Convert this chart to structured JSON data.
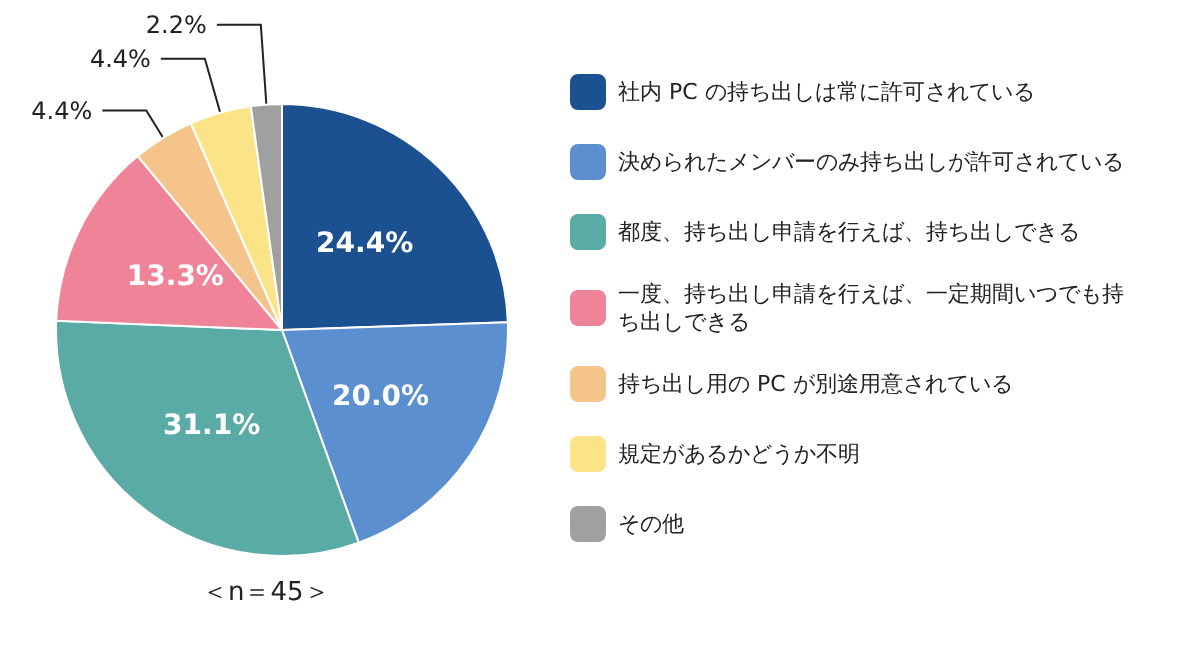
{
  "chart_data": {
    "type": "pie",
    "categories": [
      "社内 PC の持ち出しは常に許可されている",
      "決められたメンバーのみ持ち出しが許可されている",
      "都度、持ち出し申請を行えば、持ち出しできる",
      "一度、持ち出し申請を行えば、一定期間いつでも持ち出しできる",
      "持ち出し用の PC が別途用意されている",
      "規定があるかどうか不明",
      "その他"
    ],
    "values": [
      24.4,
      20.0,
      31.1,
      13.3,
      4.4,
      4.4,
      2.2
    ],
    "value_labels": [
      "24.4%",
      "20.0%",
      "31.1%",
      "13.3%",
      "4.4%",
      "4.4%",
      "2.2%"
    ],
    "colors": [
      "#1b5190",
      "#5b8fcf",
      "#5aaba6",
      "#ef8499",
      "#f5c48a",
      "#fbe488",
      "#a0a0a0"
    ],
    "legend": "right",
    "annotations": [
      "＜n＝45＞"
    ]
  }
}
